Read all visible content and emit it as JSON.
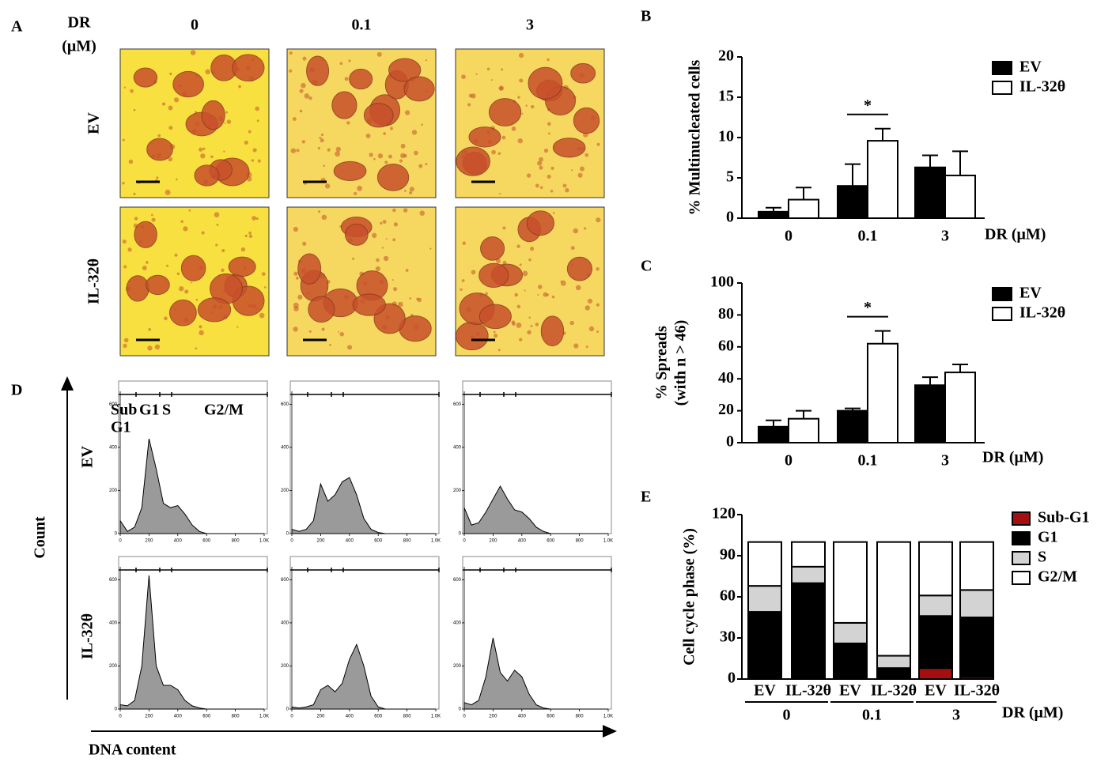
{
  "figure_a": {
    "label": "A",
    "axis_title": "DR",
    "axis_unit": "(μM)",
    "doses": [
      "0",
      "0.1",
      "3"
    ],
    "rows": [
      "EV",
      "IL-32θ"
    ]
  },
  "figure_d": {
    "label": "D",
    "y_title": "Count",
    "x_title": "DNA content",
    "rows": [
      "EV",
      "IL-32θ"
    ],
    "gates": [
      "Sub",
      "G1",
      "S",
      "G2/M",
      "G1"
    ]
  },
  "chart_data": [
    {
      "type": "grouped_bar",
      "label": "B",
      "ylabel": "% Multinucleated cells",
      "xlabel": "DR (μM)",
      "categories": [
        "0",
        "0.1",
        "3"
      ],
      "series": [
        {
          "name": "EV",
          "color": "#000000",
          "values": [
            0.8,
            4,
            6.3
          ],
          "errors": [
            0.5,
            2.7,
            1.5
          ]
        },
        {
          "name": "IL-32θ",
          "color": "#ffffff",
          "values": [
            2.3,
            9.6,
            5.3
          ],
          "errors": [
            1.5,
            1.5,
            3
          ]
        }
      ],
      "ylim": [
        0,
        20
      ],
      "yticks": [
        0,
        5,
        10,
        15,
        20
      ],
      "annotations": [
        {
          "text": "*",
          "category": "0.1"
        }
      ]
    },
    {
      "type": "grouped_bar",
      "label": "C",
      "ylabel": [
        "% Spreads",
        "(with n > 46)"
      ],
      "xlabel": "DR (μM)",
      "categories": [
        "0",
        "0.1",
        "3"
      ],
      "series": [
        {
          "name": "EV",
          "color": "#000000",
          "values": [
            10,
            20,
            36
          ],
          "errors": [
            4,
            1.5,
            5
          ]
        },
        {
          "name": "IL-32θ",
          "color": "#ffffff",
          "values": [
            15,
            62,
            44
          ],
          "errors": [
            5,
            8,
            5
          ]
        }
      ],
      "ylim": [
        0,
        100
      ],
      "yticks": [
        0,
        20,
        40,
        60,
        80,
        100
      ],
      "annotations": [
        {
          "text": "*",
          "category": "0.1"
        }
      ]
    },
    {
      "type": "stacked_bar",
      "label": "E",
      "ylabel": "Cell cycle phase (%)",
      "xlabel": "DR (μM)",
      "categories": [
        "EV",
        "IL-32θ",
        "EV",
        "IL-32θ",
        "EV",
        "IL-32θ"
      ],
      "groups": [
        "0",
        "0.1",
        "3"
      ],
      "series": [
        {
          "name": "Sub-G1",
          "color": "#a50f0f",
          "values": [
            0,
            0,
            0,
            0,
            8,
            1.5
          ]
        },
        {
          "name": "G1",
          "color": "#000000",
          "values": [
            49,
            70,
            26,
            8,
            38,
            43.5
          ]
        },
        {
          "name": "S",
          "color": "#d3d3d3",
          "values": [
            19,
            12,
            15,
            9,
            15,
            20
          ]
        },
        {
          "name": "G2/M",
          "color": "#ffffff",
          "values": [
            32,
            18,
            59,
            83,
            39,
            35
          ]
        }
      ],
      "ylim": [
        0,
        120
      ],
      "yticks": [
        0,
        30,
        60,
        90,
        120
      ]
    },
    {
      "type": "area",
      "color": "#9a9a9a",
      "x": [
        0,
        50,
        100,
        150,
        200,
        250,
        300,
        350,
        400,
        450,
        500,
        550,
        600,
        650,
        700,
        750,
        800,
        850,
        900,
        950,
        1000
      ],
      "values": [
        60,
        10,
        30,
        120,
        440,
        300,
        140,
        120,
        130,
        90,
        40,
        10,
        0,
        0,
        0,
        0,
        0,
        0,
        0,
        0,
        0
      ],
      "xlim": [
        0,
        1000
      ],
      "ylim": [
        0,
        660
      ],
      "xticks": [
        0,
        200,
        400,
        600,
        800,
        {
          "value": 1000,
          "label": "1.0K"
        }
      ],
      "yticks": [
        0,
        200,
        400,
        600
      ]
    },
    {
      "type": "area",
      "color": "#9a9a9a",
      "x": [
        0,
        50,
        100,
        150,
        200,
        250,
        300,
        350,
        400,
        450,
        500,
        550,
        600,
        650,
        700,
        750,
        800,
        850,
        900,
        950,
        1000
      ],
      "values": [
        20,
        10,
        20,
        60,
        230,
        150,
        180,
        240,
        260,
        180,
        70,
        20,
        5,
        0,
        0,
        0,
        0,
        0,
        0,
        0,
        0
      ],
      "xlim": [
        0,
        1000
      ],
      "ylim": [
        0,
        660
      ],
      "xticks": [
        0,
        200,
        400,
        600,
        800,
        {
          "value": 1000,
          "label": "1.0K"
        }
      ],
      "yticks": [
        0,
        200,
        400,
        600
      ]
    },
    {
      "type": "area",
      "color": "#9a9a9a",
      "x": [
        0,
        50,
        100,
        150,
        200,
        250,
        300,
        350,
        400,
        450,
        500,
        550,
        600,
        650,
        700,
        750,
        800,
        850,
        900,
        950,
        1000
      ],
      "values": [
        120,
        40,
        50,
        100,
        160,
        220,
        160,
        110,
        100,
        70,
        30,
        10,
        0,
        0,
        0,
        0,
        0,
        0,
        0,
        0,
        0
      ],
      "xlim": [
        0,
        1000
      ],
      "ylim": [
        0,
        660
      ],
      "xticks": [
        0,
        200,
        400,
        600,
        800,
        {
          "value": 1000,
          "label": "1.0K"
        }
      ],
      "yticks": [
        0,
        200,
        400,
        600
      ]
    },
    {
      "type": "area",
      "color": "#9a9a9a",
      "x": [
        0,
        50,
        100,
        150,
        200,
        250,
        300,
        350,
        400,
        450,
        500,
        550,
        600,
        650,
        700,
        750,
        800,
        850,
        900,
        950,
        1000
      ],
      "values": [
        20,
        15,
        40,
        200,
        620,
        200,
        110,
        110,
        90,
        40,
        15,
        5,
        0,
        0,
        0,
        0,
        0,
        0,
        0,
        0,
        0
      ],
      "xlim": [
        0,
        1000
      ],
      "ylim": [
        0,
        660
      ],
      "xticks": [
        0,
        200,
        400,
        600,
        800,
        {
          "value": 1000,
          "label": "1.0K"
        }
      ],
      "yticks": [
        0,
        200,
        400,
        600
      ]
    },
    {
      "type": "area",
      "color": "#9a9a9a",
      "x": [
        0,
        50,
        100,
        150,
        200,
        250,
        300,
        350,
        400,
        450,
        500,
        550,
        600,
        650,
        700,
        750,
        800,
        850,
        900,
        950,
        1000
      ],
      "values": [
        10,
        5,
        10,
        20,
        90,
        110,
        80,
        120,
        230,
        300,
        200,
        60,
        10,
        0,
        0,
        0,
        0,
        0,
        0,
        0,
        0
      ],
      "xlim": [
        0,
        1000
      ],
      "ylim": [
        0,
        660
      ],
      "xticks": [
        0,
        200,
        400,
        600,
        800,
        {
          "value": 1000,
          "label": "1.0K"
        }
      ],
      "yticks": [
        0,
        200,
        400,
        600
      ]
    },
    {
      "type": "area",
      "color": "#9a9a9a",
      "x": [
        0,
        50,
        100,
        150,
        200,
        250,
        300,
        350,
        400,
        450,
        500,
        550,
        600,
        650,
        700,
        750,
        800,
        850,
        900,
        950,
        1000
      ],
      "values": [
        30,
        20,
        40,
        150,
        330,
        170,
        130,
        180,
        150,
        70,
        20,
        5,
        0,
        0,
        0,
        0,
        0,
        0,
        0,
        0,
        0
      ],
      "xlim": [
        0,
        1000
      ],
      "ylim": [
        0,
        660
      ],
      "xticks": [
        0,
        200,
        400,
        600,
        800,
        {
          "value": 1000,
          "label": "1.0K"
        }
      ],
      "yticks": [
        0,
        200,
        400,
        600
      ]
    }
  ]
}
